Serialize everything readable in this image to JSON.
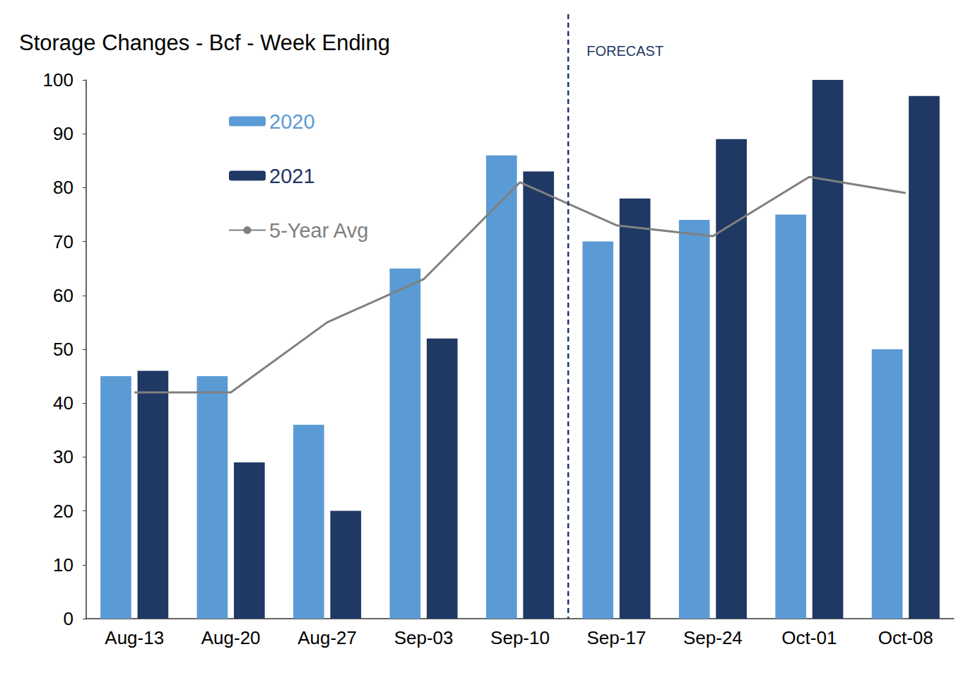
{
  "chart_data": {
    "type": "bar",
    "title": "Storage Changes - Bcf - Week Ending",
    "categories": [
      "Aug-13",
      "Aug-20",
      "Aug-27",
      "Sep-03",
      "Sep-10",
      "Sep-17",
      "Sep-24",
      "Oct-01",
      "Oct-08"
    ],
    "series": [
      {
        "name": "2020",
        "color": "#5b9bd5",
        "values": [
          45,
          45,
          36,
          65,
          86,
          70,
          74,
          75,
          50
        ]
      },
      {
        "name": "2021",
        "color": "#1f3864",
        "values": [
          46,
          29,
          20,
          52,
          83,
          78,
          89,
          100,
          97
        ]
      },
      {
        "name": "5-Year Avg",
        "type": "line",
        "color": "#808080",
        "values": [
          42,
          42,
          55,
          63,
          81,
          73,
          71,
          82,
          79
        ]
      }
    ],
    "annotations": [
      {
        "text": "FORECAST",
        "start": "Sep-17",
        "color": "#1f3864",
        "line_style": "dashed"
      }
    ],
    "ylim": [
      0,
      100
    ],
    "yticks": [
      0,
      10,
      20,
      30,
      40,
      50,
      60,
      70,
      80,
      90,
      100
    ],
    "grid": false,
    "legend": "upper left"
  }
}
